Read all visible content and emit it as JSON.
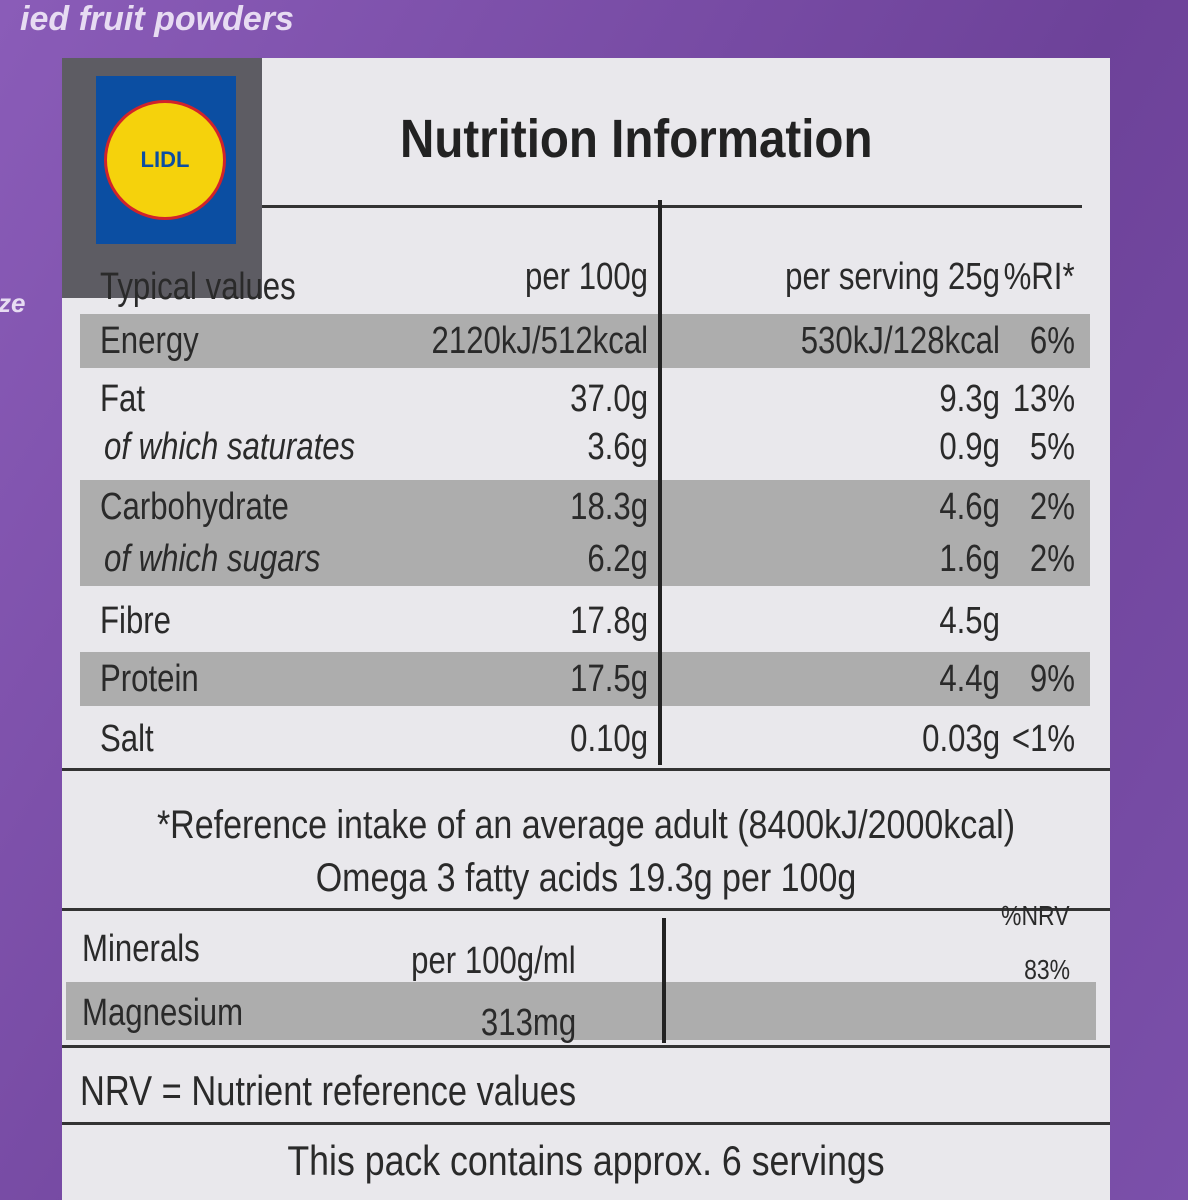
{
  "background": {
    "fragments": [
      "ied fruit powders",
      "ze"
    ]
  },
  "logo": {
    "text": "LIDL"
  },
  "title": "Nutrition Information",
  "table": {
    "header": [
      "Typical values",
      "per 100g",
      "per serving 25g",
      "%RI*"
    ],
    "rows": [
      {
        "cells": [
          "Energy",
          "2120kJ/512kcal",
          "530kJ/128kcal",
          "6%"
        ],
        "shaded": true
      },
      {
        "cells": [
          "Fat",
          "37.0g",
          "9.3g",
          "13%"
        ],
        "shaded": false
      },
      {
        "cells": [
          "of which saturates",
          "3.6g",
          "0.9g",
          "5%"
        ],
        "shaded": false
      },
      {
        "cells": [
          "Carbohydrate",
          "18.3g",
          "4.6g",
          "2%"
        ],
        "shaded": true
      },
      {
        "cells": [
          "of which sugars",
          "6.2g",
          "1.6g",
          "2%"
        ],
        "shaded": true
      },
      {
        "cells": [
          "Fibre",
          "17.8g",
          "4.5g",
          null
        ],
        "shaded": false
      },
      {
        "cells": [
          "Protein",
          "17.5g",
          "4.4g",
          "9%"
        ],
        "shaded": true
      },
      {
        "cells": [
          "Salt",
          "0.10g",
          "0.03g",
          "<1%"
        ],
        "shaded": false
      }
    ]
  },
  "footnotes": [
    "*Reference intake of an average adult (8400kJ/2000kcal)",
    "Omega 3 fatty acids 19.3g per 100g"
  ],
  "minerals": {
    "header": [
      "Minerals",
      "per 100g/ml",
      "%NRV"
    ],
    "rows": [
      {
        "cells": [
          "Magnesium",
          "313mg",
          "83%"
        ],
        "shaded": true
      }
    ]
  },
  "nrv_note": "NRV = Nutrient reference values",
  "servings_note": "This pack contains approx. 6 servings"
}
